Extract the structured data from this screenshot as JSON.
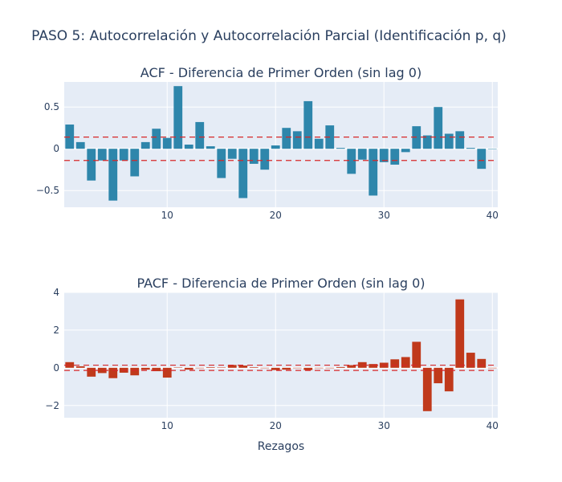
{
  "figure": {
    "title": "PASO 5: Autocorrelación y Autocorrelación Parcial (Identificación p, q)",
    "background": "#ffffff",
    "plot_background": "#e5ecf6",
    "grid_color": "#ffffff",
    "threshold_color": "#d62728"
  },
  "chart_data": [
    {
      "type": "bar",
      "title": "ACF - Diferencia de Primer Orden (sin lag 0)",
      "xlabel": "",
      "ylabel": "",
      "color": "#2e86ab",
      "xlim": [
        0.5,
        40.5
      ],
      "ylim": [
        -0.7,
        0.8
      ],
      "xticks": [
        10,
        20,
        30,
        40
      ],
      "yticks": [
        -0.5,
        0,
        0.5
      ],
      "ytick_labels": [
        "−0.5",
        "0",
        "0.5"
      ],
      "thresholds": [
        0.14,
        -0.14
      ],
      "x": [
        1,
        2,
        3,
        4,
        5,
        6,
        7,
        8,
        9,
        10,
        11,
        12,
        13,
        14,
        15,
        16,
        17,
        18,
        19,
        20,
        21,
        22,
        23,
        24,
        25,
        26,
        27,
        28,
        29,
        30,
        31,
        32,
        33,
        34,
        35,
        36,
        37,
        38,
        39,
        40
      ],
      "values": [
        0.29,
        0.08,
        -0.38,
        -0.14,
        -0.62,
        -0.14,
        -0.33,
        0.08,
        0.24,
        0.13,
        0.75,
        0.05,
        0.32,
        0.03,
        -0.35,
        -0.12,
        -0.59,
        -0.18,
        -0.25,
        0.04,
        0.25,
        0.21,
        0.57,
        0.12,
        0.28,
        0.01,
        -0.3,
        -0.13,
        -0.56,
        -0.16,
        -0.19,
        -0.04,
        0.27,
        0.16,
        0.5,
        0.18,
        0.21,
        0.01,
        -0.24,
        0.0
      ]
    },
    {
      "type": "bar",
      "title": "PACF - Diferencia de Primer Orden (sin lag 0)",
      "xlabel": "Rezagos",
      "ylabel": "",
      "color": "#c0391b",
      "xlim": [
        0.5,
        40.5
      ],
      "ylim": [
        -2.65,
        4.0
      ],
      "xticks": [
        10,
        20,
        30,
        40
      ],
      "yticks": [
        -2,
        0,
        2,
        4
      ],
      "ytick_labels": [
        "−2",
        "0",
        "2",
        "4"
      ],
      "thresholds": [
        0.14,
        -0.14
      ],
      "x": [
        1,
        2,
        3,
        4,
        5,
        6,
        7,
        8,
        9,
        10,
        11,
        12,
        13,
        14,
        15,
        16,
        17,
        18,
        19,
        20,
        21,
        22,
        23,
        24,
        25,
        26,
        27,
        28,
        29,
        30,
        31,
        32,
        33,
        34,
        35,
        36,
        37,
        38,
        39,
        40
      ],
      "values": [
        0.3,
        0.08,
        -0.47,
        -0.28,
        -0.55,
        -0.26,
        -0.4,
        -0.1,
        -0.18,
        -0.52,
        0.02,
        -0.1,
        0.0,
        0.03,
        0.02,
        0.15,
        0.12,
        0.03,
        0.0,
        -0.12,
        -0.1,
        -0.02,
        -0.12,
        0.0,
        0.0,
        0.04,
        0.14,
        0.3,
        0.2,
        0.27,
        0.45,
        0.57,
        1.38,
        -2.3,
        -0.82,
        -1.25,
        3.63,
        0.8,
        0.47,
        0.0
      ]
    }
  ]
}
